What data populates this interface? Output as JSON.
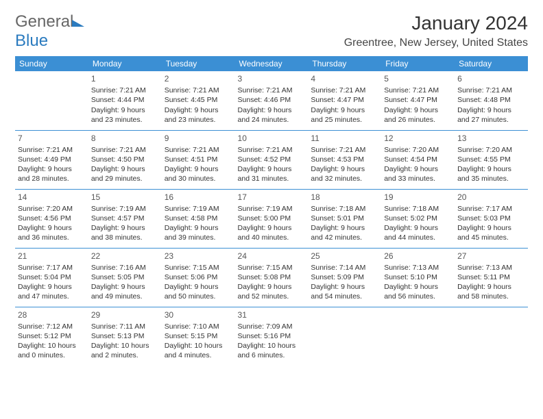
{
  "logo": {
    "text1": "General",
    "text2": "Blue"
  },
  "title": "January 2024",
  "location": "Greentree, New Jersey, United States",
  "colors": {
    "header_bg": "#3b8fd4",
    "header_fg": "#ffffff",
    "rule": "#3b8fd4"
  },
  "weekdays": [
    "Sunday",
    "Monday",
    "Tuesday",
    "Wednesday",
    "Thursday",
    "Friday",
    "Saturday"
  ],
  "start_offset": 1,
  "days": [
    {
      "n": "1",
      "sr": "7:21 AM",
      "ss": "4:44 PM",
      "dl": "9 hours and 23 minutes."
    },
    {
      "n": "2",
      "sr": "7:21 AM",
      "ss": "4:45 PM",
      "dl": "9 hours and 23 minutes."
    },
    {
      "n": "3",
      "sr": "7:21 AM",
      "ss": "4:46 PM",
      "dl": "9 hours and 24 minutes."
    },
    {
      "n": "4",
      "sr": "7:21 AM",
      "ss": "4:47 PM",
      "dl": "9 hours and 25 minutes."
    },
    {
      "n": "5",
      "sr": "7:21 AM",
      "ss": "4:47 PM",
      "dl": "9 hours and 26 minutes."
    },
    {
      "n": "6",
      "sr": "7:21 AM",
      "ss": "4:48 PM",
      "dl": "9 hours and 27 minutes."
    },
    {
      "n": "7",
      "sr": "7:21 AM",
      "ss": "4:49 PM",
      "dl": "9 hours and 28 minutes."
    },
    {
      "n": "8",
      "sr": "7:21 AM",
      "ss": "4:50 PM",
      "dl": "9 hours and 29 minutes."
    },
    {
      "n": "9",
      "sr": "7:21 AM",
      "ss": "4:51 PM",
      "dl": "9 hours and 30 minutes."
    },
    {
      "n": "10",
      "sr": "7:21 AM",
      "ss": "4:52 PM",
      "dl": "9 hours and 31 minutes."
    },
    {
      "n": "11",
      "sr": "7:21 AM",
      "ss": "4:53 PM",
      "dl": "9 hours and 32 minutes."
    },
    {
      "n": "12",
      "sr": "7:20 AM",
      "ss": "4:54 PM",
      "dl": "9 hours and 33 minutes."
    },
    {
      "n": "13",
      "sr": "7:20 AM",
      "ss": "4:55 PM",
      "dl": "9 hours and 35 minutes."
    },
    {
      "n": "14",
      "sr": "7:20 AM",
      "ss": "4:56 PM",
      "dl": "9 hours and 36 minutes."
    },
    {
      "n": "15",
      "sr": "7:19 AM",
      "ss": "4:57 PM",
      "dl": "9 hours and 38 minutes."
    },
    {
      "n": "16",
      "sr": "7:19 AM",
      "ss": "4:58 PM",
      "dl": "9 hours and 39 minutes."
    },
    {
      "n": "17",
      "sr": "7:19 AM",
      "ss": "5:00 PM",
      "dl": "9 hours and 40 minutes."
    },
    {
      "n": "18",
      "sr": "7:18 AM",
      "ss": "5:01 PM",
      "dl": "9 hours and 42 minutes."
    },
    {
      "n": "19",
      "sr": "7:18 AM",
      "ss": "5:02 PM",
      "dl": "9 hours and 44 minutes."
    },
    {
      "n": "20",
      "sr": "7:17 AM",
      "ss": "5:03 PM",
      "dl": "9 hours and 45 minutes."
    },
    {
      "n": "21",
      "sr": "7:17 AM",
      "ss": "5:04 PM",
      "dl": "9 hours and 47 minutes."
    },
    {
      "n": "22",
      "sr": "7:16 AM",
      "ss": "5:05 PM",
      "dl": "9 hours and 49 minutes."
    },
    {
      "n": "23",
      "sr": "7:15 AM",
      "ss": "5:06 PM",
      "dl": "9 hours and 50 minutes."
    },
    {
      "n": "24",
      "sr": "7:15 AM",
      "ss": "5:08 PM",
      "dl": "9 hours and 52 minutes."
    },
    {
      "n": "25",
      "sr": "7:14 AM",
      "ss": "5:09 PM",
      "dl": "9 hours and 54 minutes."
    },
    {
      "n": "26",
      "sr": "7:13 AM",
      "ss": "5:10 PM",
      "dl": "9 hours and 56 minutes."
    },
    {
      "n": "27",
      "sr": "7:13 AM",
      "ss": "5:11 PM",
      "dl": "9 hours and 58 minutes."
    },
    {
      "n": "28",
      "sr": "7:12 AM",
      "ss": "5:12 PM",
      "dl": "10 hours and 0 minutes."
    },
    {
      "n": "29",
      "sr": "7:11 AM",
      "ss": "5:13 PM",
      "dl": "10 hours and 2 minutes."
    },
    {
      "n": "30",
      "sr": "7:10 AM",
      "ss": "5:15 PM",
      "dl": "10 hours and 4 minutes."
    },
    {
      "n": "31",
      "sr": "7:09 AM",
      "ss": "5:16 PM",
      "dl": "10 hours and 6 minutes."
    }
  ],
  "labels": {
    "sunrise": "Sunrise:",
    "sunset": "Sunset:",
    "daylight": "Daylight:"
  }
}
